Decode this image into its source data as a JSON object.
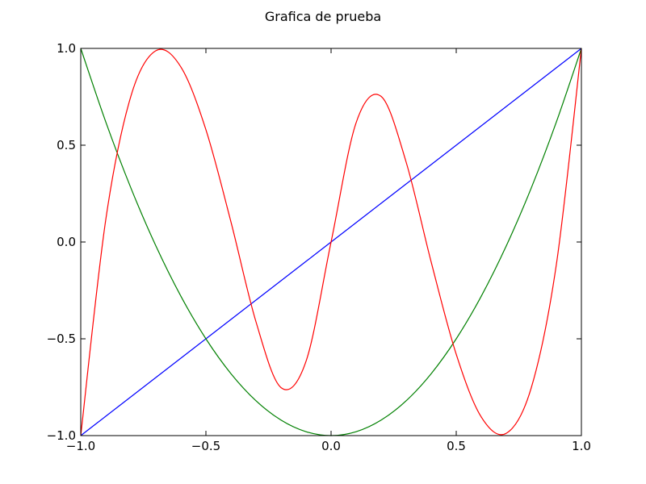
{
  "chart_data": {
    "type": "line",
    "title": "Grafica de prueba",
    "xlabel": "",
    "ylabel": "",
    "xlim": [
      -1.0,
      1.0
    ],
    "ylim": [
      -1.0,
      1.0
    ],
    "grid": false,
    "x_ticks": [
      {
        "value": -1.0,
        "label": "−1.0"
      },
      {
        "value": -0.5,
        "label": "−0.5"
      },
      {
        "value": 0.0,
        "label": "0.0"
      },
      {
        "value": 0.5,
        "label": "0.5"
      },
      {
        "value": 1.0,
        "label": "1.0"
      }
    ],
    "y_ticks": [
      {
        "value": -1.0,
        "label": "−1.0"
      },
      {
        "value": -0.5,
        "label": "−0.5"
      },
      {
        "value": 0.0,
        "label": "0.0"
      },
      {
        "value": 0.5,
        "label": "0.5"
      },
      {
        "value": 1.0,
        "label": "1.0"
      }
    ],
    "x": [
      -1.0,
      -0.9,
      -0.8,
      -0.7,
      -0.6,
      -0.5,
      -0.4,
      -0.3,
      -0.2,
      -0.1,
      0.0,
      0.1,
      0.2,
      0.3,
      0.4,
      0.5,
      0.6,
      0.7,
      0.8,
      0.9,
      1.0
    ],
    "series": [
      {
        "color": "#0000ff",
        "values": [
          -1.0,
          -0.9,
          -0.8,
          -0.7,
          -0.6,
          -0.5,
          -0.4,
          -0.3,
          -0.2,
          -0.1,
          0.0,
          0.1,
          0.2,
          0.3,
          0.4,
          0.5,
          0.6,
          0.7,
          0.8,
          0.9,
          1.0
        ]
      },
      {
        "color": "#008000",
        "values": [
          1.0,
          0.62,
          0.28,
          -0.02,
          -0.28,
          -0.5,
          -0.68,
          -0.82,
          -0.92,
          -0.98,
          -1.0,
          -0.98,
          -0.92,
          -0.82,
          -0.68,
          -0.5,
          -0.28,
          -0.02,
          0.28,
          0.62,
          1.0
        ]
      },
      {
        "color": "#ff0000",
        "values": [
          -1.0,
          0.116,
          0.752,
          0.988,
          0.904,
          0.58,
          0.104,
          -0.412,
          -0.752,
          -0.616,
          0.0,
          0.616,
          0.752,
          0.412,
          -0.104,
          -0.58,
          -0.904,
          -0.988,
          -0.752,
          -0.116,
          1.0
        ]
      }
    ]
  }
}
